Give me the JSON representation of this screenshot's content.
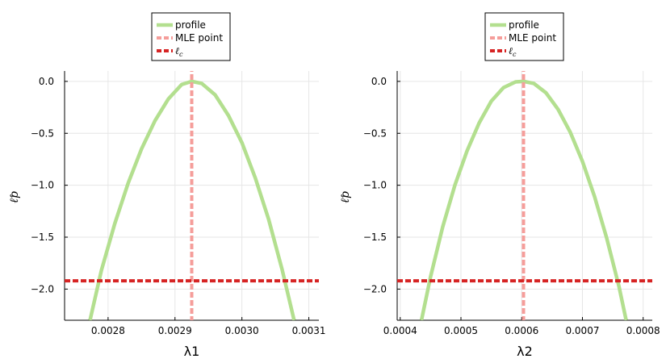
{
  "chart_data": [
    {
      "type": "line",
      "xlabel": "λ1",
      "ylabel": "ℓ̂p",
      "xlim": [
        0.002735,
        0.003115
      ],
      "ylim": [
        -2.3,
        0.1
      ],
      "xticks": [
        0.0028,
        0.0029,
        0.003,
        0.0031
      ],
      "xtick_labels": [
        "0.0028",
        "0.0029",
        "0.0030",
        "0.0031"
      ],
      "yticks": [
        0,
        -0.5,
        -1,
        -1.5,
        -2
      ],
      "ytick_labels": [
        "0.0",
        "−0.5",
        "−1.0",
        "−1.5",
        "−2.0"
      ],
      "grid": true,
      "legend_position": "top-center outside",
      "series": [
        {
          "name": "profile",
          "kind": "curve",
          "color": "#b3df8f",
          "x": [
            0.002773,
            0.00279,
            0.00281,
            0.00283,
            0.00285,
            0.00287,
            0.00289,
            0.00291,
            0.002925,
            0.00294,
            0.00296,
            0.00298,
            0.003,
            0.00302,
            0.00304,
            0.00306,
            0.003078
          ],
          "y": [
            -2.3,
            -1.82,
            -1.37,
            -0.98,
            -0.65,
            -0.38,
            -0.17,
            -0.03,
            0.0,
            -0.02,
            -0.13,
            -0.33,
            -0.59,
            -0.93,
            -1.33,
            -1.81,
            -2.3
          ]
        },
        {
          "name": "MLE point",
          "kind": "vline",
          "color": "#f59d9a",
          "x": 0.002925
        },
        {
          "name": "ℓc",
          "kind": "hline",
          "color": "#d62424",
          "y": -1.92
        }
      ]
    },
    {
      "type": "line",
      "xlabel": "λ2",
      "ylabel": "ℓ̂p",
      "xlim": [
        0.000395,
        0.000815
      ],
      "ylim": [
        -2.3,
        0.1
      ],
      "xticks": [
        0.0004,
        0.0005,
        0.0006,
        0.0007,
        0.0008
      ],
      "xtick_labels": [
        "0.0004",
        "0.0005",
        "0.0006",
        "0.0007",
        "0.0008"
      ],
      "yticks": [
        0,
        -0.5,
        -1,
        -1.5,
        -2
      ],
      "ytick_labels": [
        "0.0",
        "−0.5",
        "−1.0",
        "−1.5",
        "−2.0"
      ],
      "grid": true,
      "legend_position": "top-center outside",
      "series": [
        {
          "name": "profile",
          "kind": "curve",
          "color": "#b3df8f",
          "x": [
            0.000435,
            0.00045,
            0.00047,
            0.00049,
            0.00051,
            0.00053,
            0.00055,
            0.00057,
            0.00059,
            0.000603,
            0.00062,
            0.00064,
            0.00066,
            0.00068,
            0.0007,
            0.00072,
            0.00074,
            0.00076,
            0.000772
          ],
          "y": [
            -2.3,
            -1.88,
            -1.4,
            -1.0,
            -0.67,
            -0.4,
            -0.19,
            -0.06,
            -0.005,
            0.0,
            -0.02,
            -0.11,
            -0.27,
            -0.49,
            -0.77,
            -1.11,
            -1.51,
            -1.97,
            -2.3
          ]
        },
        {
          "name": "MLE point",
          "kind": "vline",
          "color": "#f59d9a",
          "x": 0.000603
        },
        {
          "name": "ℓc",
          "kind": "hline",
          "color": "#d62424",
          "y": -1.92
        }
      ]
    }
  ]
}
